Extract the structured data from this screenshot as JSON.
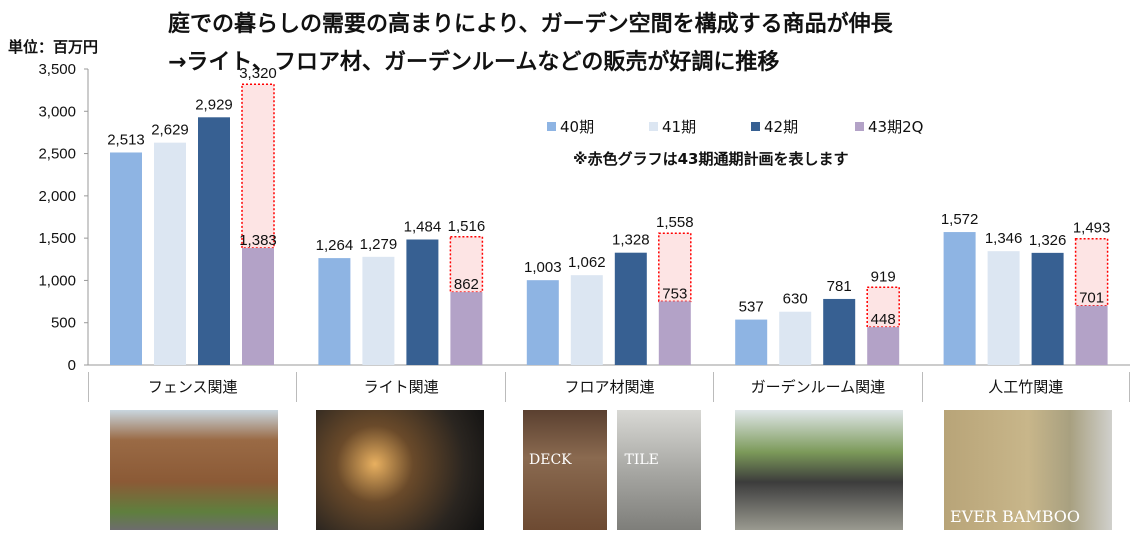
{
  "headline": {
    "line1": "庭での暮らしの需要の高まりにより、ガーデン空間を構成する商品が伸長",
    "line2": "→ライト、フロア材、ガーデンルームなどの販売が好調に推移"
  },
  "note": "※赤色グラフは43期通期計画を表します",
  "chart_data": {
    "type": "bar",
    "ylabel": "単位：百万円",
    "ylim": [
      0,
      3500
    ],
    "yticks": [
      "0",
      "500",
      "1,000",
      "1,500",
      "2,000",
      "2,500",
      "3,000",
      "3,500"
    ],
    "yticks_values": [
      0,
      500,
      1000,
      1500,
      2000,
      2500,
      3000,
      3500
    ],
    "grid": false,
    "legend_position": "top-right",
    "categories": [
      "フェンス関連",
      "ライト関連",
      "フロア材関連",
      "ガーデンルーム関連",
      "人工竹関連"
    ],
    "series": [
      {
        "name": "40期",
        "color": "#8eb4e3",
        "values": [
          2513,
          1264,
          1003,
          537,
          1572
        ],
        "labels": [
          "2,513",
          "1,264",
          "1,003",
          "537",
          "1,572"
        ]
      },
      {
        "name": "41期",
        "color": "#dce6f2",
        "values": [
          2629,
          1279,
          1062,
          630,
          1346
        ],
        "labels": [
          "2,629",
          "1,279",
          "1,062",
          "630",
          "1,346"
        ]
      },
      {
        "name": "42期",
        "color": "#376092",
        "values": [
          2929,
          1484,
          1328,
          781,
          1326
        ],
        "labels": [
          "2,929",
          "1,484",
          "1,328",
          "781",
          "1,326"
        ]
      },
      {
        "name": "43期2Q",
        "color": "#b3a2c7",
        "values": [
          1383,
          862,
          753,
          448,
          701
        ],
        "labels": [
          "1,383",
          "862",
          "753",
          "448",
          "701"
        ]
      }
    ],
    "plan": {
      "color": "#ff0000",
      "fill": "#fde4e4",
      "values": [
        3320,
        1516,
        1558,
        919,
        1493
      ],
      "labels": [
        "3,320",
        "1,516",
        "1,558",
        "919",
        "1,493"
      ]
    }
  },
  "photos": [
    {
      "category": "フェンス関連",
      "caption": ""
    },
    {
      "category": "ライト関連",
      "caption": ""
    },
    {
      "category": "フロア材関連",
      "caption": "DECK  TILE"
    },
    {
      "category": "ガーデンルーム関連",
      "caption": ""
    },
    {
      "category": "人工竹関連",
      "caption": "EVER BAMBOO"
    }
  ]
}
